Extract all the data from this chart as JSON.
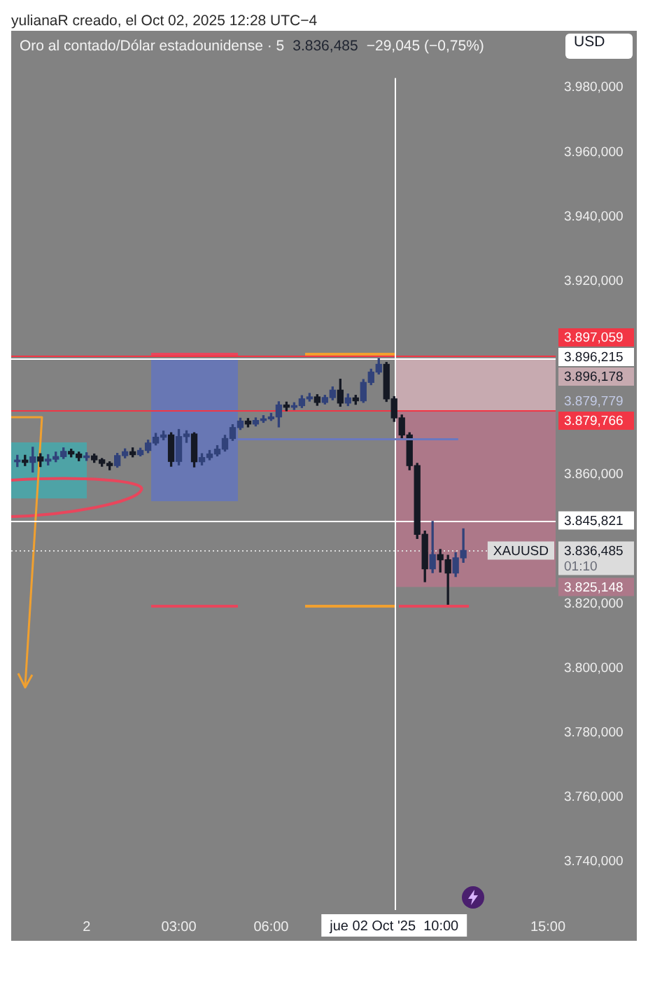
{
  "chart_data": {
    "type": "candlestick",
    "title": "Oro al contado/Dólar estadounidense · 5",
    "ylabel": "USD",
    "annotations": [
      "yulianaR creado, el Oct 02, 2025 12:28 UTC−4",
      "3.836,485",
      "−29,045 (−0,75%)",
      "XAUUSD",
      "01:10",
      "3.879,779"
    ],
    "x": [
      "2025-10-01T21:45",
      "2025-10-01T22:00",
      "2025-10-01T22:15",
      "2025-10-01T22:30",
      "2025-10-01T22:45",
      "2025-10-01T23:00",
      "2025-10-01T23:15",
      "2025-10-01T23:30",
      "2025-10-01T23:45",
      "2025-10-02T00:00",
      "2025-10-02T00:15",
      "2025-10-02T00:30",
      "2025-10-02T00:45",
      "2025-10-02T01:00",
      "2025-10-02T01:15",
      "2025-10-02T01:30",
      "2025-10-02T01:45",
      "2025-10-02T02:00",
      "2025-10-02T02:15",
      "2025-10-02T02:30",
      "2025-10-02T02:45",
      "2025-10-02T03:00",
      "2025-10-02T03:15",
      "2025-10-02T03:30",
      "2025-10-02T03:45",
      "2025-10-02T04:00",
      "2025-10-02T04:15",
      "2025-10-02T04:30",
      "2025-10-02T04:45",
      "2025-10-02T05:00",
      "2025-10-02T05:15",
      "2025-10-02T05:30",
      "2025-10-02T05:45",
      "2025-10-02T06:00",
      "2025-10-02T06:15",
      "2025-10-02T06:30",
      "2025-10-02T06:45",
      "2025-10-02T07:00",
      "2025-10-02T07:15",
      "2025-10-02T07:30",
      "2025-10-02T07:45",
      "2025-10-02T08:00",
      "2025-10-02T08:15",
      "2025-10-02T08:30",
      "2025-10-02T08:45",
      "2025-10-02T09:00",
      "2025-10-02T09:15",
      "2025-10-02T09:30",
      "2025-10-02T09:45",
      "2025-10-02T10:00",
      "2025-10-02T10:15",
      "2025-10-02T10:30",
      "2025-10-02T10:45",
      "2025-10-02T11:00",
      "2025-10-02T11:15",
      "2025-10-02T11:30",
      "2025-10-02T11:45",
      "2025-10-02T12:00",
      "2025-10-02T12:15"
    ],
    "ohlc": [
      [
        3864.0,
        3866.0,
        3862.5,
        3864.5
      ],
      [
        3864.5,
        3866.0,
        3862.8,
        3863.8
      ],
      [
        3863.8,
        3868.5,
        3860.8,
        3865.5
      ],
      [
        3865.5,
        3866.5,
        3862.5,
        3864.2
      ],
      [
        3864.2,
        3866.2,
        3863.0,
        3864.8
      ],
      [
        3864.8,
        3867.0,
        3864.0,
        3865.6
      ],
      [
        3865.6,
        3868.3,
        3865.0,
        3867.2
      ],
      [
        3867.2,
        3867.9,
        3865.5,
        3866.4
      ],
      [
        3866.4,
        3867.0,
        3864.3,
        3865.3
      ],
      [
        3865.3,
        3866.8,
        3864.4,
        3865.8
      ],
      [
        3865.8,
        3866.4,
        3863.8,
        3864.6
      ],
      [
        3864.6,
        3865.0,
        3862.6,
        3863.5
      ],
      [
        3863.5,
        3864.0,
        3861.5,
        3862.8
      ],
      [
        3862.8,
        3866.6,
        3862.3,
        3865.9
      ],
      [
        3865.9,
        3868.0,
        3865.2,
        3867.1
      ],
      [
        3867.1,
        3868.3,
        3865.5,
        3866.2
      ],
      [
        3866.2,
        3868.2,
        3865.8,
        3867.5
      ],
      [
        3867.5,
        3870.7,
        3866.8,
        3869.8
      ],
      [
        3869.8,
        3872.8,
        3869.2,
        3871.6
      ],
      [
        3871.6,
        3873.5,
        3870.8,
        3872.3
      ],
      [
        3872.3,
        3873.0,
        3862.6,
        3864.1
      ],
      [
        3864.1,
        3874.0,
        3863.0,
        3871.8
      ],
      [
        3871.8,
        3873.6,
        3870.0,
        3872.6
      ],
      [
        3872.6,
        3873.0,
        3862.4,
        3864.0
      ],
      [
        3864.0,
        3866.5,
        3863.0,
        3865.3
      ],
      [
        3865.3,
        3867.5,
        3864.6,
        3866.4
      ],
      [
        3866.4,
        3869.0,
        3865.8,
        3867.9
      ],
      [
        3867.9,
        3872.2,
        3867.3,
        3871.2
      ],
      [
        3871.2,
        3875.5,
        3870.6,
        3874.6
      ],
      [
        3874.6,
        3877.5,
        3874.0,
        3876.6
      ],
      [
        3876.6,
        3877.4,
        3874.8,
        3875.7
      ],
      [
        3875.7,
        3877.6,
        3875.1,
        3876.8
      ],
      [
        3876.8,
        3878.3,
        3876.2,
        3877.3
      ],
      [
        3877.3,
        3879.0,
        3876.8,
        3877.9
      ],
      [
        3877.9,
        3882.6,
        3874.8,
        3881.6
      ],
      [
        3881.6,
        3882.5,
        3879.8,
        3880.9
      ],
      [
        3880.9,
        3882.3,
        3880.2,
        3881.4
      ],
      [
        3881.4,
        3884.5,
        3880.8,
        3883.5
      ],
      [
        3883.5,
        3885.2,
        3882.8,
        3884.1
      ],
      [
        3884.1,
        3884.8,
        3881.5,
        3882.4
      ],
      [
        3882.4,
        3884.6,
        3881.9,
        3883.9
      ],
      [
        3883.9,
        3887.2,
        3883.2,
        3886.2
      ],
      [
        3886.2,
        3889.6,
        3881.2,
        3882.2
      ],
      [
        3882.2,
        3885.0,
        3881.4,
        3883.8
      ],
      [
        3883.8,
        3884.6,
        3881.8,
        3882.9
      ],
      [
        3882.9,
        3889.5,
        3882.4,
        3888.6
      ],
      [
        3888.6,
        3892.7,
        3887.9,
        3891.8
      ],
      [
        3891.8,
        3896.0,
        3891.2,
        3894.2
      ],
      [
        3894.2,
        3894.8,
        3882.7,
        3883.5
      ],
      [
        3883.5,
        3884.2,
        3876.5,
        3877.6
      ],
      [
        3877.6,
        3878.5,
        3871.0,
        3872.3
      ],
      [
        3872.3,
        3873.0,
        3861.5,
        3862.8
      ],
      [
        3862.8,
        3863.5,
        3840.2,
        3841.5
      ],
      [
        3841.5,
        3842.5,
        3826.8,
        3830.8
      ],
      [
        3830.8,
        3845.5,
        3829.6,
        3835.2
      ],
      [
        3835.2,
        3836.8,
        3829.8,
        3833.6
      ],
      [
        3833.6,
        3835.0,
        3819.8,
        3829.5
      ],
      [
        3829.5,
        3835.8,
        3828.4,
        3834.2
      ],
      [
        3834.2,
        3843.2,
        3832.8,
        3836.485
      ]
    ],
    "colors": [
      "#31427a",
      "#151924",
      "#31427a",
      "#151924",
      "#31427a",
      "#31427a",
      "#31427a",
      "#151924",
      "#151924",
      "#31427a",
      "#151924",
      "#151924",
      "#151924",
      "#31427a",
      "#31427a",
      "#151924",
      "#31427a",
      "#31427a",
      "#31427a",
      "#31427a",
      "#151924",
      "#31427a",
      "#31427a",
      "#151924",
      "#31427a",
      "#31427a",
      "#31427a",
      "#31427a",
      "#31427a",
      "#31427a",
      "#151924",
      "#31427a",
      "#31427a",
      "#31427a",
      "#31427a",
      "#151924",
      "#31427a",
      "#31427a",
      "#31427a",
      "#151924",
      "#31427a",
      "#31427a",
      "#151924",
      "#31427a",
      "#151924",
      "#31427a",
      "#31427a",
      "#31427a",
      "#151924",
      "#151924",
      "#151924",
      "#151924",
      "#151924",
      "#151924",
      "#31427a",
      "#151924",
      "#151924",
      "#31427a",
      "#31427a"
    ],
    "series": [
      {
        "type": "line",
        "x": [
          "2025-10-02T04:55",
          "2025-10-02T12:05"
        ],
        "values": [
          3871,
          3871
        ],
        "color": "#6a78c0"
      }
    ],
    "xlim": [
      "2025-10-01T21:33",
      "2025-10-02T15:15"
    ],
    "xticks": [
      {
        "value": "2025-10-02",
        "label": "2"
      },
      {
        "value": "2025-10-02T03:00",
        "label": "03:00"
      },
      {
        "value": "2025-10-02T06:00",
        "label": "06:00"
      },
      {
        "value": "2025-10-02T15:00",
        "label": "15:00"
      }
    ],
    "ylim": [
      3725,
      3983
    ],
    "yticks": [
      {
        "value": 3740,
        "label": "3.740,000"
      },
      {
        "value": 3760,
        "label": "3.760,000"
      },
      {
        "value": 3780,
        "label": "3.780,000"
      },
      {
        "value": 3800,
        "label": "3.800,000"
      },
      {
        "value": 3820,
        "label": "3.820,000"
      },
      {
        "value": 3860,
        "label": "3.860,000"
      },
      {
        "value": 3920,
        "label": "3.920,000"
      },
      {
        "value": 3940,
        "label": "3.940,000"
      },
      {
        "value": 3960,
        "label": "3.960,000"
      },
      {
        "value": 3980,
        "label": "3.980,000"
      }
    ],
    "ref_lines": [
      {
        "axis": "y",
        "value": 3897.059,
        "label": "3.897,059",
        "color": "#f23645"
      },
      {
        "axis": "y",
        "value": 3896.215,
        "label": "3.896,215",
        "color": "#ffffff"
      },
      {
        "axis": "y",
        "value": 3879.766,
        "label": "3.879,766",
        "color": "#f23645"
      },
      {
        "axis": "y",
        "value": 3845.821,
        "label": "3.845,821",
        "color": "#ffffff"
      },
      {
        "axis": "y",
        "value": 3836.485,
        "label": "3.836,485",
        "color": "#dcdcdc",
        "line_style": "dotted"
      },
      {
        "axis": "x",
        "value": "2025-10-02T10:00",
        "label": "jue 02 Oct '25  10:00",
        "color": "#ffffff"
      }
    ],
    "bands": [
      {
        "axis": "y",
        "from": 3879.779,
        "to": 3896.178,
        "label": "3.896,178",
        "color": "#c7aab0"
      },
      {
        "axis": "y",
        "from": 3825.148,
        "to": 3879.779,
        "label": "3.825,148",
        "color": "#ad7889"
      }
    ]
  }
}
